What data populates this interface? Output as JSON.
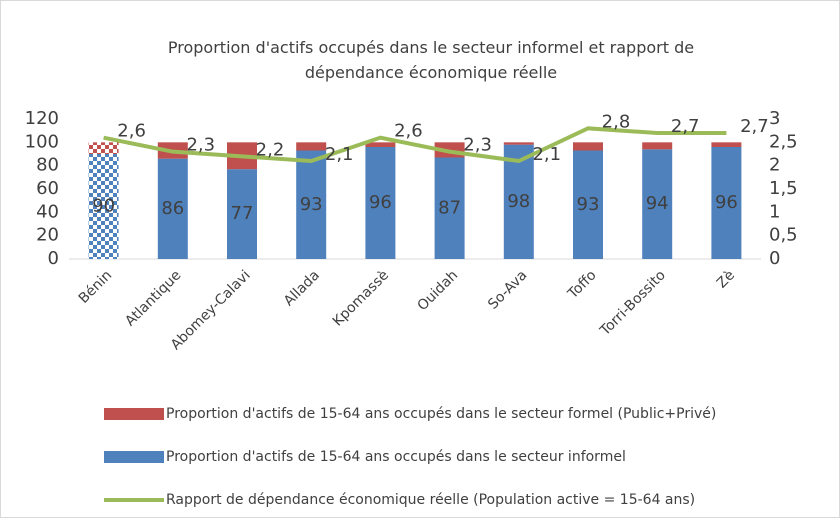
{
  "chart_data": {
    "type": "bar_line",
    "title": "Proportion d'actifs occupés dans le secteur informel et rapport de dépendance économique réelle",
    "categories": [
      "Bénin",
      "Atlantique",
      "Abomey-Calavi",
      "Allada",
      "Kpomassè",
      "Ouidah",
      "So-Ava",
      "Toffo",
      "Torri-Bossito",
      "Zè"
    ],
    "series": [
      {
        "name": "Proportion d'actifs de 15-64 ans occupés dans le secteur informel",
        "color": "#4f81bd",
        "kind": "bar",
        "values": [
          90,
          86,
          77,
          93,
          96,
          87,
          98,
          93,
          94,
          96
        ]
      },
      {
        "name": "Proportion d'actifs de 15-64 ans occupés dans le secteur formel (Public+Privé)",
        "color": "#c0504d",
        "kind": "bar",
        "values": [
          10,
          14,
          23,
          7,
          4,
          13,
          2,
          7,
          6,
          4
        ]
      },
      {
        "name": "Rapport de dépendance économique réelle (Population active = 15-64 ans)",
        "color": "#9bbb59",
        "kind": "line",
        "axis": "y2",
        "values": [
          2.6,
          2.3,
          2.2,
          2.1,
          2.6,
          2.3,
          2.1,
          2.8,
          2.7,
          2.7
        ],
        "value_labels": [
          "2,6",
          "2,3",
          "2,2",
          "2,1",
          "2,6",
          "2,3",
          "2,1",
          "2,8",
          "2,7",
          "2,7"
        ]
      }
    ],
    "ylim": [
      0,
      120
    ],
    "yticks": [
      0,
      20,
      40,
      60,
      80,
      100,
      120
    ],
    "y2lim": [
      0,
      3
    ],
    "y2ticks": [
      0,
      {
        "value": 0.5,
        "label": "0,5"
      },
      1,
      {
        "value": 1.5,
        "label": "1,5"
      },
      2,
      {
        "value": 2.5,
        "label": "2,5"
      },
      3
    ],
    "legend_order": [
      1,
      0,
      2
    ]
  }
}
